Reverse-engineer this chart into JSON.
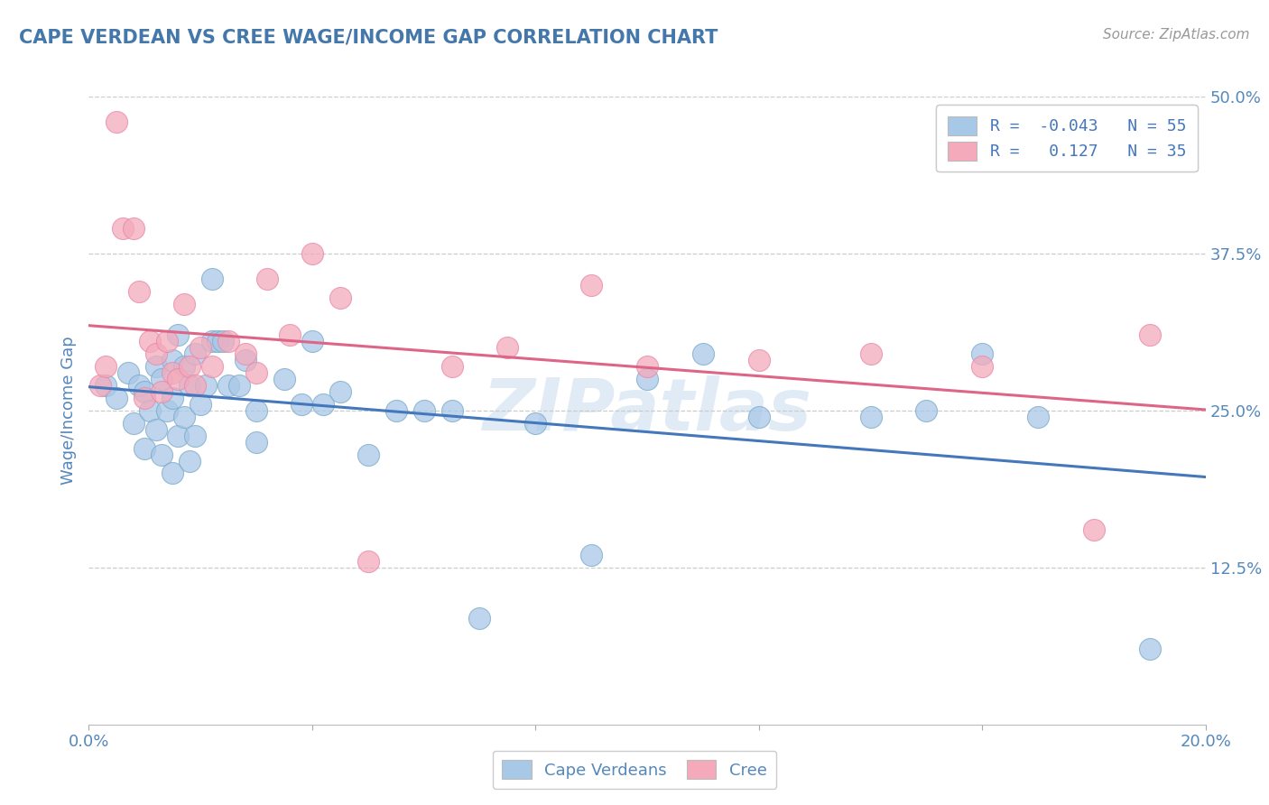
{
  "title": "CAPE VERDEAN VS CREE WAGE/INCOME GAP CORRELATION CHART",
  "source": "Source: ZipAtlas.com",
  "ylabel": "Wage/Income Gap",
  "xlim": [
    0.0,
    0.2
  ],
  "ylim": [
    0.0,
    0.5
  ],
  "xticks": [
    0.0,
    0.04,
    0.08,
    0.12,
    0.16,
    0.2
  ],
  "xticklabels": [
    "0.0%",
    "",
    "",
    "",
    "",
    "20.0%"
  ],
  "yticks": [
    0.125,
    0.25,
    0.375,
    0.5
  ],
  "yticklabels": [
    "12.5%",
    "25.0%",
    "37.5%",
    "50.0%"
  ],
  "blue_R": -0.043,
  "blue_N": 55,
  "pink_R": 0.127,
  "pink_N": 35,
  "blue_color": "#A8C8E8",
  "pink_color": "#F4AABB",
  "blue_edge_color": "#7AAAC8",
  "pink_edge_color": "#E888AA",
  "blue_line_color": "#4477BB",
  "pink_line_color": "#DD6688",
  "title_color": "#4477AA",
  "axis_color": "#5588BB",
  "legend_r_color": "#4477BB",
  "watermark": "ZIPatlas",
  "blue_scatter_x": [
    0.003,
    0.005,
    0.007,
    0.008,
    0.009,
    0.01,
    0.01,
    0.011,
    0.012,
    0.012,
    0.013,
    0.013,
    0.014,
    0.015,
    0.015,
    0.015,
    0.016,
    0.016,
    0.017,
    0.017,
    0.018,
    0.018,
    0.019,
    0.019,
    0.02,
    0.021,
    0.022,
    0.022,
    0.023,
    0.024,
    0.025,
    0.027,
    0.028,
    0.03,
    0.03,
    0.035,
    0.038,
    0.04,
    0.042,
    0.045,
    0.05,
    0.055,
    0.06,
    0.065,
    0.07,
    0.08,
    0.09,
    0.1,
    0.11,
    0.12,
    0.14,
    0.15,
    0.16,
    0.17,
    0.19
  ],
  "blue_scatter_y": [
    0.27,
    0.26,
    0.28,
    0.24,
    0.27,
    0.22,
    0.265,
    0.25,
    0.235,
    0.285,
    0.215,
    0.275,
    0.25,
    0.2,
    0.26,
    0.29,
    0.23,
    0.31,
    0.245,
    0.285,
    0.21,
    0.27,
    0.23,
    0.295,
    0.255,
    0.27,
    0.355,
    0.305,
    0.305,
    0.305,
    0.27,
    0.27,
    0.29,
    0.225,
    0.25,
    0.275,
    0.255,
    0.305,
    0.255,
    0.265,
    0.215,
    0.25,
    0.25,
    0.25,
    0.085,
    0.24,
    0.135,
    0.275,
    0.295,
    0.245,
    0.245,
    0.25,
    0.295,
    0.245,
    0.06
  ],
  "pink_scatter_x": [
    0.002,
    0.003,
    0.005,
    0.006,
    0.008,
    0.009,
    0.01,
    0.011,
    0.012,
    0.013,
    0.014,
    0.015,
    0.016,
    0.017,
    0.018,
    0.019,
    0.02,
    0.022,
    0.025,
    0.028,
    0.03,
    0.032,
    0.036,
    0.04,
    0.045,
    0.05,
    0.065,
    0.075,
    0.09,
    0.1,
    0.12,
    0.14,
    0.16,
    0.18,
    0.19
  ],
  "pink_scatter_y": [
    0.27,
    0.285,
    0.48,
    0.395,
    0.395,
    0.345,
    0.26,
    0.305,
    0.295,
    0.265,
    0.305,
    0.28,
    0.275,
    0.335,
    0.285,
    0.27,
    0.3,
    0.285,
    0.305,
    0.295,
    0.28,
    0.355,
    0.31,
    0.375,
    0.34,
    0.13,
    0.285,
    0.3,
    0.35,
    0.285,
    0.29,
    0.295,
    0.285,
    0.155,
    0.31
  ]
}
